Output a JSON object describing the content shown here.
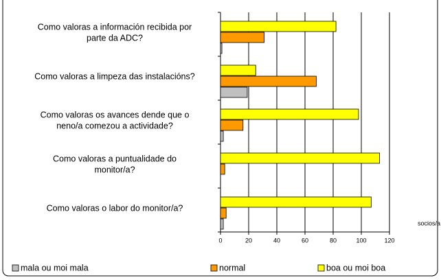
{
  "chart_data": {
    "type": "hbar",
    "categories": [
      [
        "Como valoras a información recibida por",
        "parte da ADC?"
      ],
      [
        "Como valoras a limpeza das instalacións?"
      ],
      [
        "Como valoras os avances dende que o",
        "neno/a comezou a actividade?"
      ],
      [
        "Como valoras a puntualidade do",
        "monitor/a?"
      ],
      [
        "Como valoras o labor do monitor/a?"
      ]
    ],
    "series": [
      {
        "name": "mala ou moi mala",
        "color": "#c0c0c0",
        "values": [
          1,
          19,
          2,
          0,
          2
        ]
      },
      {
        "name": "normal",
        "color": "#ff9900",
        "values": [
          31,
          68,
          16,
          3,
          4
        ]
      },
      {
        "name": "boa ou moi boa",
        "color": "#ffff00",
        "values": [
          82,
          25,
          98,
          113,
          107
        ]
      }
    ],
    "xlabel": "socios/a",
    "xlim": [
      0,
      120
    ],
    "xticks": [
      0,
      20,
      40,
      60,
      80,
      100,
      120
    ],
    "grid": true,
    "legend": "bottom"
  }
}
